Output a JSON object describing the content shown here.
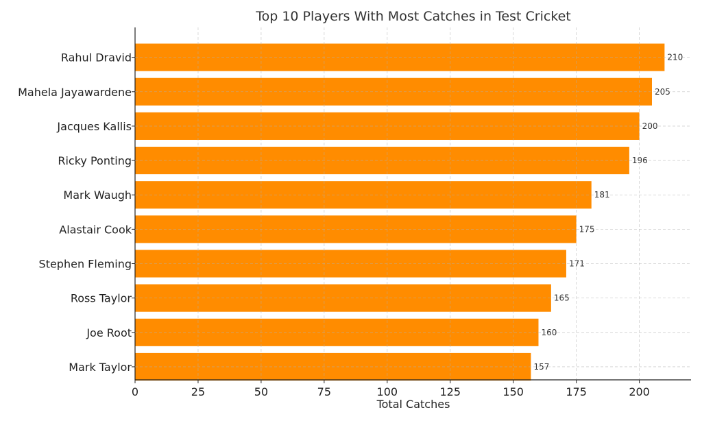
{
  "chart_data": {
    "type": "bar",
    "orientation": "horizontal",
    "title": "Top 10 Players With Most Catches in Test Cricket",
    "xlabel": "Total Catches",
    "ylabel": "",
    "categories": [
      "Rahul Dravid",
      "Mahela Jayawardene",
      "Jacques Kallis",
      "Ricky Ponting",
      "Mark Waugh",
      "Alastair Cook",
      "Stephen Fleming",
      "Ross Taylor",
      "Joe Root",
      "Mark Taylor"
    ],
    "values": [
      210,
      205,
      200,
      196,
      181,
      175,
      171,
      165,
      160,
      157
    ],
    "xlim": [
      0,
      220.5
    ],
    "xticks": [
      0,
      25,
      50,
      75,
      100,
      125,
      150,
      175,
      200
    ],
    "grid": true,
    "legend": "none",
    "bar_color": "#FF8C00"
  }
}
